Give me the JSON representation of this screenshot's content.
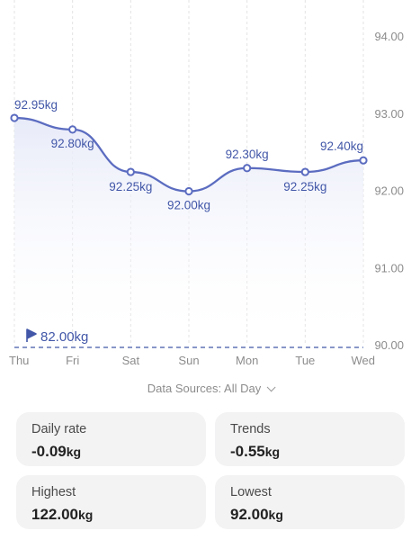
{
  "chart_data": {
    "type": "line",
    "categories": [
      "Thu",
      "Fri",
      "Sat",
      "Sun",
      "Mon",
      "Tue",
      "Wed"
    ],
    "series": [
      {
        "values": [
          92.95,
          92.8,
          92.25,
          92.0,
          92.3,
          92.25,
          92.4
        ]
      }
    ],
    "data_labels": [
      "92.95kg",
      "92.80kg",
      "92.25kg",
      "92.00kg",
      "92.30kg",
      "92.25kg",
      "92.40kg"
    ],
    "y_ticks": [
      "90.00",
      "91.00",
      "92.00",
      "93.00",
      "94.00"
    ],
    "ylim": [
      90,
      94
    ],
    "y_axis_position": "right",
    "grid": "vertical dashed",
    "goal": {
      "value": 82.0,
      "label": "82.00kg",
      "icon": "flag-icon"
    },
    "colors": {
      "line": "#5b6cc0",
      "fill_top": "#e6e9f8",
      "label": "#4257a8",
      "grid": "#e3e3e3"
    }
  },
  "data_source": {
    "label": "Data Sources: All Day",
    "icon": "chevron-down-icon"
  },
  "stats": [
    {
      "label": "Daily rate",
      "value": "-0.09",
      "unit": "kg"
    },
    {
      "label": "Trends",
      "value": "-0.55",
      "unit": "kg"
    },
    {
      "label": "Highest",
      "value": "122.00",
      "unit": "kg"
    },
    {
      "label": "Lowest",
      "value": "92.00",
      "unit": "kg"
    }
  ]
}
